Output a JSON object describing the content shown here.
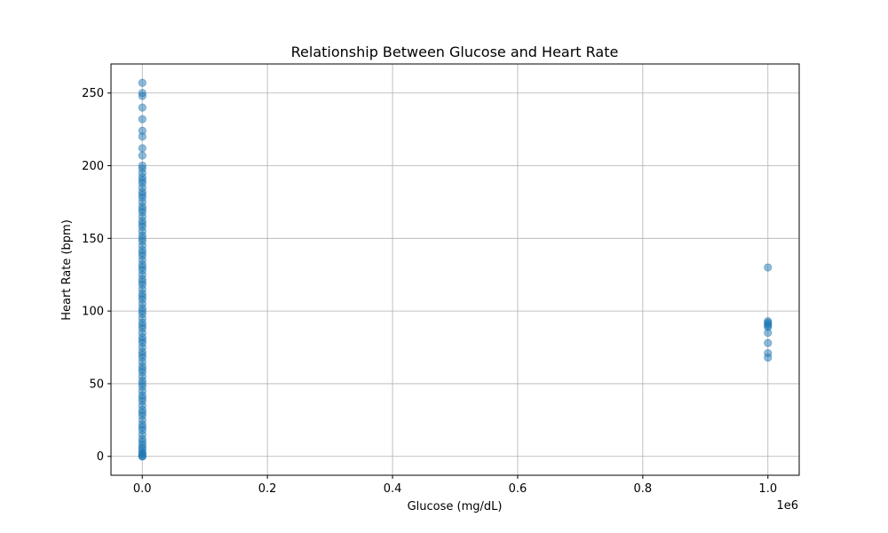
{
  "chart_data": {
    "type": "scatter",
    "title": "Relationship Between Glucose and Heart Rate",
    "xlabel": "Glucose (mg/dL)",
    "ylabel": "Heart Rate (bpm)",
    "x_offset_label": "1e6",
    "xlim": [
      -50000,
      1050000
    ],
    "ylim": [
      -13,
      270
    ],
    "x_ticks": [
      0,
      200000,
      400000,
      600000,
      800000,
      1000000
    ],
    "x_tick_labels": [
      "0.0",
      "0.2",
      "0.4",
      "0.6",
      "0.8",
      "1.0"
    ],
    "y_ticks": [
      0,
      50,
      100,
      150,
      200,
      250
    ],
    "y_tick_labels": [
      "0",
      "50",
      "100",
      "150",
      "200",
      "250"
    ],
    "grid": true,
    "marker_color": "#1f77b4",
    "marker_alpha": 0.5,
    "series": [
      {
        "x": [
          100,
          120,
          90,
          150,
          200,
          80,
          110,
          130,
          95,
          105,
          140,
          85,
          115,
          125,
          100,
          90,
          160,
          110,
          100,
          120,
          95,
          130,
          100,
          110,
          85,
          140,
          100,
          120,
          90,
          100,
          105,
          115,
          110,
          100,
          95,
          120,
          130,
          100,
          90,
          110,
          100,
          125,
          105,
          95,
          100,
          115,
          100,
          120,
          110,
          100,
          90,
          105,
          100,
          130,
          100,
          110,
          95,
          100,
          120,
          100,
          105,
          115,
          100,
          90,
          110,
          100,
          125,
          100,
          95,
          105,
          100,
          110,
          100,
          120,
          100,
          95,
          110,
          100,
          105,
          100,
          115,
          100,
          90,
          100,
          120,
          100,
          110,
          105,
          100,
          95,
          100,
          130,
          100,
          110,
          1000000,
          1000000,
          1000000,
          1000000,
          1000000,
          1000000,
          1000000,
          1000000,
          1000000,
          1000000
        ],
        "y": [
          0,
          2,
          5,
          8,
          10,
          12,
          15,
          18,
          20,
          22,
          25,
          28,
          30,
          32,
          35,
          38,
          40,
          42,
          45,
          48,
          50,
          52,
          55,
          58,
          60,
          62,
          65,
          68,
          70,
          72,
          75,
          78,
          80,
          82,
          85,
          88,
          90,
          92,
          95,
          98,
          100,
          102,
          105,
          108,
          110,
          112,
          115,
          118,
          120,
          122,
          125,
          128,
          130,
          132,
          135,
          138,
          140,
          142,
          145,
          148,
          150,
          152,
          155,
          158,
          160,
          162,
          165,
          168,
          170,
          172,
          175,
          178,
          180,
          182,
          185,
          188,
          190,
          192,
          195,
          198,
          200,
          207,
          212,
          220,
          224,
          232,
          240,
          248,
          250,
          257,
          0,
          1,
          3,
          6,
          130,
          93,
          92,
          91,
          90,
          89,
          85,
          78,
          71,
          68
        ]
      }
    ]
  }
}
